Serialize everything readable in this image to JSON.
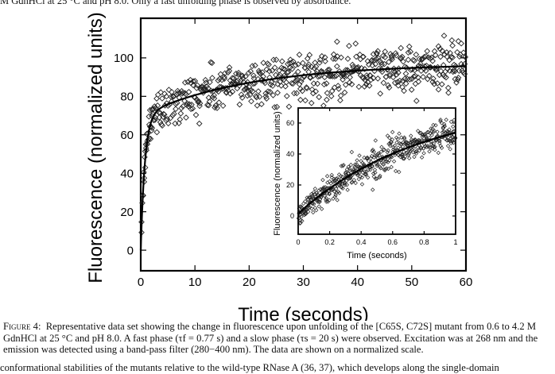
{
  "page": {
    "top_text": "M GdnHCl at 25 °C and pH 8.0. Only a fast unfolding phase is observed by absorbance.",
    "caption": {
      "label": "Figure 4:",
      "line1": "Representative data set showing the change in fluorescence upon unfolding of the [C65S, C72S] mutant from 0.6 to 4.2 M",
      "line2": "GdnHCl at 25 °C and pH 8.0. A fast phase (τf = 0.77 s) and a slow phase (τs = 20 s) were observed. Excitation was at 268 nm and the",
      "line3": "emission was detected using a band-pass filter (280−400 nm). The data are shown on a normalized scale."
    },
    "bottom_text": "conformational stabilities of the mutants relative to the wild-type RNase A (36, 37), which develops along the single-domain"
  },
  "chart_data": [
    {
      "id": "main",
      "type": "scatter",
      "title": "",
      "xlabel": "Time (seconds)",
      "ylabel": "Fluorescence (normalized units)",
      "xlim": [
        0,
        60
      ],
      "ylim": [
        -10.7,
        120.6
      ],
      "xticks": [
        0,
        10,
        20,
        30,
        40,
        50,
        60
      ],
      "yticks": [
        0,
        20,
        40,
        60,
        80,
        100
      ],
      "xtick_labels": [
        "0",
        "10",
        "20",
        "30",
        "40",
        "50",
        "60"
      ],
      "ytick_labels": [
        "0",
        "20",
        "40",
        "60",
        "80",
        "100"
      ],
      "marker": "open-diamond",
      "grid": false,
      "fit": {
        "model": "double-exponential",
        "amplitude_fast": 70,
        "tau_fast_s": 0.77,
        "amplitude_slow": 27,
        "tau_slow_s": 20,
        "offset": 0
      },
      "scatter_summary": {
        "n_points": 600,
        "t_range": [
          0,
          60
        ],
        "noise_sd": 6,
        "description": "Raw fluorescence scatter around fit; rises from ~0 to ~75 within ~3 s, then slowly to ~95 at 60 s"
      }
    },
    {
      "id": "inset",
      "type": "scatter",
      "title": "",
      "xlabel": "Time (seconds)",
      "ylabel": "Fluorescence (normalized units)",
      "xlim": [
        0,
        1
      ],
      "ylim": [
        -11.8,
        69.7
      ],
      "xticks": [
        0,
        0.2,
        0.4,
        0.6,
        0.8,
        1
      ],
      "yticks": [
        0,
        20,
        40,
        60
      ],
      "xtick_labels": [
        "0",
        "0.2",
        "0.4",
        "0.6",
        "0.8",
        "1"
      ],
      "ytick_labels": [
        "0",
        "20",
        "40",
        "60"
      ],
      "marker": "open-diamond",
      "grid": false,
      "fit": {
        "model": "double-exponential",
        "amplitude_fast": 70,
        "tau_fast_s": 0.77,
        "amplitude_slow": 27,
        "tau_slow_s": 20,
        "offset": 1.5
      },
      "scatter_summary": {
        "n_points": 500,
        "t_range": [
          0,
          1
        ],
        "noise_sd": 4.5,
        "description": "Early-time data: rises from ~0 at t=0 to ~55 at t=1 s"
      }
    }
  ]
}
